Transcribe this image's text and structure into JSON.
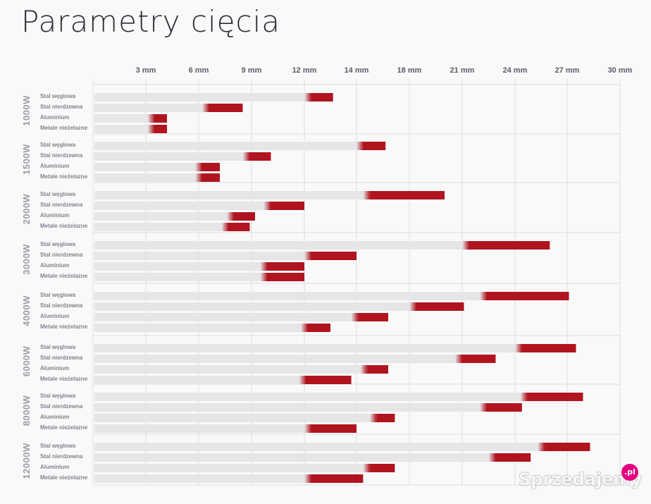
{
  "page": {
    "title": "Parametry cięcia"
  },
  "watermark": {
    "text": "Sprzedajemy",
    "badge": ".pl"
  },
  "chart_data": {
    "type": "bar",
    "orientation": "horizontal",
    "title": "Parametry cięcia",
    "axis": {
      "position": "top",
      "tick_labels": [
        "3 mm",
        "6 mm",
        "9 mm",
        "12 mm",
        "14 mm",
        "18 mm",
        "21 mm",
        "24 mm",
        "27 mm",
        "30 mm"
      ],
      "tick_values": [
        3,
        6,
        9,
        12,
        14,
        18,
        21,
        24,
        27,
        30
      ],
      "grid": true
    },
    "colors": {
      "base": "#e6e6e8",
      "accent": "#b0141e",
      "grid": "#dcdde0"
    },
    "materials": [
      "Stal węglowa",
      "Stal nierdzewna",
      "Aluminium",
      "Metale nieżelazne"
    ],
    "groups": [
      {
        "power": "1000W",
        "bars": [
          {
            "material": "Stal węglowa",
            "good_until": 12,
            "max": 13.1
          },
          {
            "material": "Stal nierdzewna",
            "good_until": 6.2,
            "max": 8.5
          },
          {
            "material": "Aluminium",
            "good_until": 3.1,
            "max": 4.2
          },
          {
            "material": "Metale nieżelazne",
            "good_until": 3.1,
            "max": 4.2
          }
        ]
      },
      {
        "power": "1500W",
        "bars": [
          {
            "material": "Stal węglowa",
            "good_until": 14,
            "max": 16.2
          },
          {
            "material": "Stal nierdzewna",
            "good_until": 8.5,
            "max": 10.1
          },
          {
            "material": "Aluminium",
            "good_until": 5.8,
            "max": 7.2
          },
          {
            "material": "Metale nieżelazne",
            "good_until": 5.8,
            "max": 7.2
          }
        ]
      },
      {
        "power": "2000W",
        "bars": [
          {
            "material": "Stal węglowa",
            "good_until": 14.5,
            "max": 20
          },
          {
            "material": "Stal nierdzewna",
            "good_until": 9.7,
            "max": 12
          },
          {
            "material": "Aluminium",
            "good_until": 7.6,
            "max": 9.2
          },
          {
            "material": "Metale nieżelazne",
            "good_until": 7.3,
            "max": 8.9
          }
        ]
      },
      {
        "power": "3000W",
        "bars": [
          {
            "material": "Stal węglowa",
            "good_until": 21,
            "max": 26
          },
          {
            "material": "Stal nierdzewna",
            "good_until": 12,
            "max": 14
          },
          {
            "material": "Aluminium",
            "good_until": 9.5,
            "max": 12
          },
          {
            "material": "Metale nieżelazne",
            "good_until": 9.5,
            "max": 12
          }
        ]
      },
      {
        "power": "4000W",
        "bars": [
          {
            "material": "Stal węglowa",
            "good_until": 22,
            "max": 27.1
          },
          {
            "material": "Stal nierdzewna",
            "good_until": 18,
            "max": 21.1
          },
          {
            "material": "Aluminium",
            "good_until": 13.8,
            "max": 16.4
          },
          {
            "material": "Metale nieżelazne",
            "good_until": 11.8,
            "max": 13
          }
        ]
      },
      {
        "power": "6000W",
        "bars": [
          {
            "material": "Stal węglowa",
            "good_until": 24,
            "max": 27.5
          },
          {
            "material": "Stal nierdzewna",
            "good_until": 20.6,
            "max": 22.9
          },
          {
            "material": "Aluminium",
            "good_until": 14.3,
            "max": 16.4
          },
          {
            "material": "Metale nieżelazne",
            "good_until": 11.7,
            "max": 13.8
          }
        ]
      },
      {
        "power": "8000W",
        "bars": [
          {
            "material": "Stal węglowa",
            "good_until": 24.3,
            "max": 27.9
          },
          {
            "material": "Stal nierdzewna",
            "good_until": 22,
            "max": 24.4
          },
          {
            "material": "Aluminium",
            "good_until": 15,
            "max": 16.9
          },
          {
            "material": "Metale nieżelazne",
            "good_until": 12,
            "max": 14
          }
        ]
      },
      {
        "power": "12000W",
        "bars": [
          {
            "material": "Stal węglowa",
            "good_until": 25.3,
            "max": 28.3
          },
          {
            "material": "Stal nierdzewna",
            "good_until": 22.5,
            "max": 24.9
          },
          {
            "material": "Aluminium",
            "good_until": 14.5,
            "max": 16.9
          },
          {
            "material": "Metale nieżelazne",
            "good_until": 12,
            "max": 14.5
          }
        ]
      }
    ]
  }
}
